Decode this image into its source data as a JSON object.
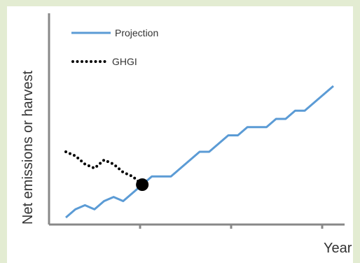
{
  "chart_data": {
    "type": "line",
    "title": "",
    "xlabel": "Year",
    "ylabel": "Net emissions or harvest",
    "xlim": [
      0,
      30
    ],
    "ylim": [
      0,
      25
    ],
    "grid": false,
    "legend": {
      "placement": "top-left",
      "entries": [
        {
          "label": "Projection",
          "style": "solid",
          "color": "#5b9bd5"
        },
        {
          "label": "GHGI",
          "style": "dotted",
          "color": "#000000"
        }
      ]
    },
    "series": [
      {
        "name": "Projection",
        "color": "#5b9bd5",
        "x": [
          2,
          3,
          4,
          5,
          6,
          7,
          8,
          9,
          10,
          11,
          12,
          13,
          14,
          15,
          16,
          17,
          18,
          19,
          20,
          21,
          22,
          23,
          24,
          25,
          26,
          27,
          28,
          29,
          30
        ],
        "y": [
          4,
          5,
          5.5,
          5,
          6,
          6.5,
          6,
          7,
          8,
          9,
          9,
          9,
          10,
          11,
          12,
          12,
          13,
          14,
          14,
          15,
          15,
          15,
          16,
          16,
          17,
          17,
          18,
          19,
          20
        ]
      },
      {
        "name": "GHGI",
        "color": "#000000",
        "x": [
          2,
          3,
          4,
          5,
          6,
          7,
          8,
          9,
          10
        ],
        "y": [
          12,
          11.5,
          10.5,
          10,
          11,
          10.5,
          9.5,
          9,
          8
        ]
      }
    ],
    "markers": [
      {
        "x": 10,
        "y": 8,
        "color": "#000000"
      }
    ]
  }
}
